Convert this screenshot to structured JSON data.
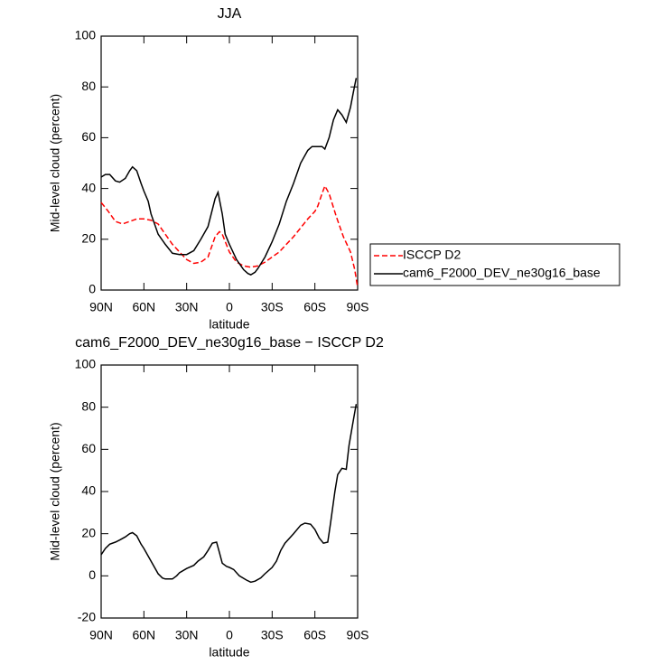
{
  "chart_data": [
    {
      "type": "line",
      "title": "JJA",
      "xlabel": "latitude",
      "ylabel": "Mid-level cloud (percent)",
      "xlim": [
        90,
        -90
      ],
      "ylim": [
        0,
        100
      ],
      "xticks": [
        {
          "value": 90,
          "label": "90N"
        },
        {
          "value": 60,
          "label": "60N"
        },
        {
          "value": 30,
          "label": "30N"
        },
        0,
        {
          "value": -30,
          "label": "30S"
        },
        {
          "value": -60,
          "label": "60S"
        },
        {
          "value": -90,
          "label": "90S"
        }
      ],
      "yticks": [
        0,
        20,
        40,
        60,
        80,
        100
      ],
      "legend": "right",
      "series": [
        {
          "name": "ISCCP D2",
          "color": "#ff0000",
          "dashed": true,
          "x": [
            90,
            85,
            80,
            75,
            70,
            65,
            60,
            55,
            50,
            45,
            40,
            35,
            30,
            25,
            20,
            15,
            10,
            7,
            5,
            0,
            -5,
            -10,
            -15,
            -20,
            -25,
            -30,
            -35,
            -40,
            -45,
            -50,
            -55,
            -60,
            -62,
            -65,
            -67,
            -70,
            -75,
            -80,
            -85,
            -88,
            -90
          ],
          "values": [
            34.5,
            31,
            27,
            26,
            27,
            28,
            28,
            27.5,
            26,
            22,
            18,
            15,
            12,
            10.5,
            11,
            13,
            21,
            23,
            22,
            15,
            11,
            9.5,
            9,
            9.5,
            11,
            13,
            15,
            18,
            21,
            24.5,
            28,
            31,
            33,
            38,
            41,
            38,
            29,
            21,
            15,
            8,
            1
          ]
        },
        {
          "name": "cam6_F2000_DEV_ne30g16_base",
          "color": "#000000",
          "dashed": false,
          "x": [
            90,
            87,
            84,
            80,
            77,
            73,
            70,
            68,
            65,
            62,
            60,
            57,
            55,
            50,
            45,
            40,
            35,
            30,
            25,
            20,
            15,
            10,
            8,
            5,
            3,
            0,
            -5,
            -10,
            -13,
            -15,
            -18,
            -20,
            -25,
            -30,
            -35,
            -40,
            -45,
            -50,
            -55,
            -58,
            -62,
            -65,
            -67,
            -70,
            -73,
            -76,
            -79,
            -82,
            -85,
            -87,
            -89
          ],
          "values": [
            44.5,
            45.5,
            45.5,
            43,
            42.5,
            44,
            47,
            48.5,
            47,
            42,
            39,
            35,
            30,
            22,
            18,
            14.5,
            14,
            14,
            15.5,
            20,
            25,
            36,
            38.5,
            30,
            22,
            18,
            12,
            8,
            6.5,
            6,
            7,
            8.5,
            13,
            19,
            26,
            35,
            42,
            50,
            55,
            56.5,
            56.5,
            56.5,
            55.5,
            60,
            67,
            71,
            69,
            66,
            72,
            78,
            83.5
          ]
        }
      ]
    },
    {
      "type": "line",
      "title": "cam6_F2000_DEV_ne30g16_base − ISCCP D2",
      "xlabel": "latitude",
      "ylabel": "Mid-level cloud (percent)",
      "xlim": [
        90,
        -90
      ],
      "ylim": [
        -20,
        100
      ],
      "xticks": [
        {
          "value": 90,
          "label": "90N"
        },
        {
          "value": 60,
          "label": "60N"
        },
        {
          "value": 30,
          "label": "30N"
        },
        0,
        {
          "value": -30,
          "label": "30S"
        },
        {
          "value": -60,
          "label": "60S"
        },
        {
          "value": -90,
          "label": "90S"
        }
      ],
      "yticks": [
        -20,
        0,
        20,
        40,
        60,
        80,
        100
      ],
      "series": [
        {
          "color": "#000000",
          "dashed": false,
          "x": [
            90,
            87,
            84,
            80,
            77,
            73,
            70,
            68,
            65,
            62,
            60,
            55,
            50,
            47,
            45,
            40,
            37,
            35,
            30,
            25,
            22,
            18,
            15,
            12,
            9,
            7,
            5,
            2,
            0,
            -3,
            -7,
            -12,
            -15,
            -18,
            -22,
            -25,
            -30,
            -33,
            -36,
            -39,
            -45,
            -50,
            -53,
            -57,
            -60,
            -63,
            -66,
            -69,
            -71,
            -74,
            -76,
            -79,
            -82,
            -84,
            -87,
            -89
          ],
          "values": [
            10,
            13,
            15,
            16,
            17,
            18.5,
            20,
            20.5,
            19,
            15,
            13,
            7,
            1,
            -1,
            -1.5,
            -1.5,
            0,
            1.5,
            3.5,
            5,
            7,
            9,
            12,
            15.5,
            16,
            11,
            6,
            4.5,
            4,
            3,
            0,
            -2,
            -3,
            -2.5,
            -1,
            1,
            4,
            7,
            12,
            15.5,
            20,
            24,
            25,
            24.5,
            22,
            18,
            15.5,
            16,
            25,
            40,
            48,
            51,
            50.5,
            62,
            74,
            81.5
          ]
        }
      ]
    }
  ]
}
